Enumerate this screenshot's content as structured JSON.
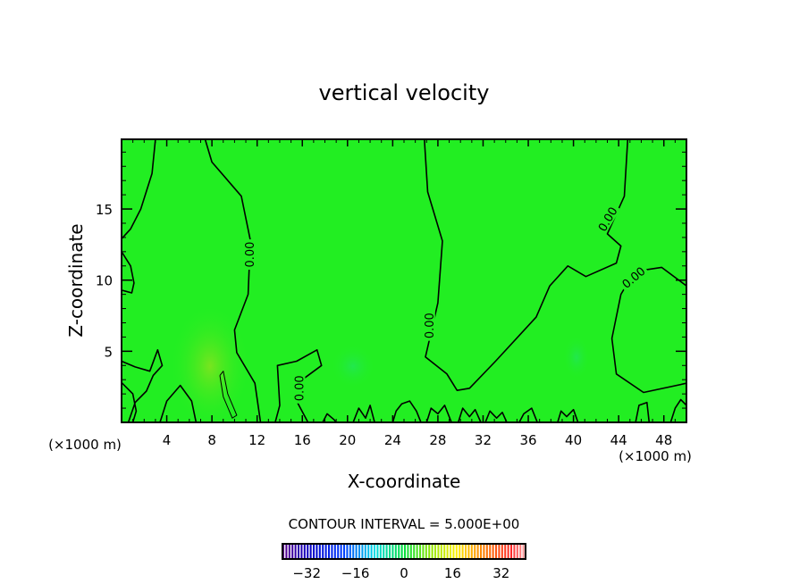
{
  "chart_data": {
    "type": "contour",
    "title": "vertical velocity",
    "xlabel": "X-coordinate",
    "ylabel": "Z-coordinate",
    "x_unit_label": "(×1000 m)",
    "y_unit_label": "(×1000 m)",
    "xlim": [
      0,
      50
    ],
    "ylim": [
      0,
      19.9
    ],
    "xticks": [
      4,
      8,
      12,
      16,
      20,
      24,
      28,
      32,
      36,
      40,
      44,
      48
    ],
    "yticks": [
      5,
      10,
      15
    ],
    "contour_interval_text": "CONTOUR INTERVAL = 5.000E+00",
    "colorbar": {
      "ticks": [
        "-32",
        "-16",
        "0",
        "16",
        "32"
      ],
      "range": [
        -40,
        40
      ]
    },
    "contour_labels": [
      "0.00",
      "0.00",
      "0.00",
      "0.00",
      "0.00"
    ],
    "field_color": "#22ee22",
    "contours": [
      {
        "level": 0,
        "points": [
          [
            3.0,
            19.9
          ],
          [
            2.7,
            17.5
          ],
          [
            1.7,
            15
          ],
          [
            0.8,
            13.6
          ],
          [
            0,
            12.9
          ]
        ]
      },
      {
        "level": 0,
        "points": [
          [
            0,
            12.0
          ],
          [
            0.8,
            11.0
          ],
          [
            1.1,
            9.8
          ],
          [
            0.9,
            9.1
          ],
          [
            0,
            9.3
          ]
        ]
      },
      {
        "level": 0,
        "points": [
          [
            7.4,
            19.9
          ],
          [
            8.0,
            18.3
          ],
          [
            10.6,
            15.9
          ],
          [
            11.4,
            12.8
          ],
          [
            11.2,
            9.0
          ],
          [
            10.0,
            6.5
          ],
          [
            10.2,
            4.9
          ],
          [
            11.8,
            2.75
          ],
          [
            12.3,
            0
          ]
        ]
      },
      {
        "level": 0,
        "points": [
          [
            26.8,
            19.9
          ],
          [
            27.1,
            16.2
          ],
          [
            28.4,
            12.75
          ],
          [
            28.0,
            8.4
          ],
          [
            26.9,
            4.6
          ],
          [
            28.8,
            3.4
          ],
          [
            29.7,
            2.25
          ],
          [
            30.8,
            2.4
          ],
          [
            33.1,
            4.3
          ],
          [
            36.7,
            7.4
          ],
          [
            37.9,
            9.6
          ],
          [
            39.5,
            11.0
          ],
          [
            41.1,
            10.25
          ],
          [
            43.8,
            11.2
          ],
          [
            44.2,
            12.4
          ],
          [
            43.0,
            13.25
          ],
          [
            44.5,
            15.9
          ],
          [
            44.8,
            19.9
          ]
        ]
      },
      {
        "level": 0,
        "points": [
          [
            50,
            9.6
          ],
          [
            47.8,
            10.9
          ],
          [
            45.4,
            10.6
          ],
          [
            44.2,
            9.0
          ],
          [
            43.4,
            5.9
          ],
          [
            43.8,
            3.4
          ],
          [
            46.2,
            2.1
          ],
          [
            50,
            2.75
          ]
        ]
      },
      {
        "level": 0,
        "points": [
          [
            0,
            4.3
          ],
          [
            1.2,
            3.9
          ],
          [
            2.5,
            3.6
          ],
          [
            3.2,
            5.1
          ],
          [
            3.6,
            4.0
          ],
          [
            2.8,
            3.3
          ],
          [
            2.2,
            2.2
          ],
          [
            1.2,
            1.4
          ],
          [
            0.6,
            0
          ]
        ]
      },
      {
        "level": 0,
        "points": [
          [
            0,
            2.8
          ],
          [
            1.0,
            2.0
          ],
          [
            1.3,
            0.8
          ],
          [
            1.0,
            0
          ]
        ]
      },
      {
        "level": 0,
        "points": [
          [
            3.4,
            0
          ],
          [
            4.0,
            1.5
          ],
          [
            5.2,
            2.6
          ],
          [
            6.2,
            1.5
          ],
          [
            6.6,
            0
          ]
        ]
      },
      {
        "level": 0,
        "points": [
          [
            13.6,
            0
          ],
          [
            14.0,
            1.2
          ],
          [
            13.8,
            4.0
          ],
          [
            15.5,
            4.3
          ],
          [
            17.3,
            5.1
          ],
          [
            17.7,
            4.0
          ],
          [
            16.0,
            3.0
          ],
          [
            15.5,
            1.5
          ],
          [
            16.5,
            0
          ]
        ]
      },
      {
        "level": 5,
        "points": [
          [
            8.7,
            3.3
          ],
          [
            9.0,
            3.6
          ],
          [
            9.4,
            2.0
          ],
          [
            10.2,
            0.5
          ],
          [
            9.8,
            0.3
          ],
          [
            9.0,
            1.8
          ],
          [
            8.7,
            3.3
          ]
        ]
      },
      {
        "level": 0,
        "points": [
          [
            20.5,
            0
          ],
          [
            21.0,
            1.0
          ],
          [
            21.6,
            0.3
          ],
          [
            22.0,
            1.2
          ],
          [
            22.4,
            0
          ]
        ]
      },
      {
        "level": 0,
        "points": [
          [
            24.0,
            0
          ],
          [
            24.3,
            0.8
          ],
          [
            24.8,
            1.3
          ],
          [
            25.5,
            1.5
          ],
          [
            26.1,
            0.8
          ],
          [
            26.5,
            0
          ]
        ]
      },
      {
        "level": 0,
        "points": [
          [
            27.0,
            0
          ],
          [
            27.4,
            1.0
          ],
          [
            28.0,
            0.6
          ],
          [
            28.6,
            1.2
          ],
          [
            29.2,
            0
          ]
        ]
      },
      {
        "level": 0,
        "points": [
          [
            29.8,
            0
          ],
          [
            30.2,
            1.0
          ],
          [
            30.8,
            0.4
          ],
          [
            31.3,
            0.9
          ],
          [
            31.8,
            0
          ]
        ]
      },
      {
        "level": 0,
        "points": [
          [
            32.2,
            0
          ],
          [
            32.6,
            0.8
          ],
          [
            33.2,
            0.3
          ],
          [
            33.7,
            0.7
          ],
          [
            34.1,
            0
          ]
        ]
      },
      {
        "level": 0,
        "points": [
          [
            35.2,
            0
          ],
          [
            35.6,
            0.6
          ],
          [
            36.3,
            1.0
          ],
          [
            36.8,
            0
          ]
        ]
      },
      {
        "level": 0,
        "points": [
          [
            38.6,
            0
          ],
          [
            38.9,
            0.8
          ],
          [
            39.4,
            0.4
          ],
          [
            40.0,
            0.9
          ],
          [
            40.4,
            0
          ]
        ]
      },
      {
        "level": 0,
        "points": [
          [
            45.5,
            0
          ],
          [
            45.8,
            1.2
          ],
          [
            46.5,
            1.4
          ],
          [
            46.7,
            0
          ]
        ]
      },
      {
        "level": 0,
        "points": [
          [
            48.6,
            0
          ],
          [
            49.0,
            1.0
          ],
          [
            49.5,
            1.6
          ],
          [
            50,
            1.2
          ]
        ]
      },
      {
        "level": 0,
        "points": [
          [
            17.8,
            0
          ],
          [
            18.2,
            0.6
          ],
          [
            18.8,
            0.2
          ],
          [
            19.0,
            0
          ]
        ]
      }
    ]
  }
}
